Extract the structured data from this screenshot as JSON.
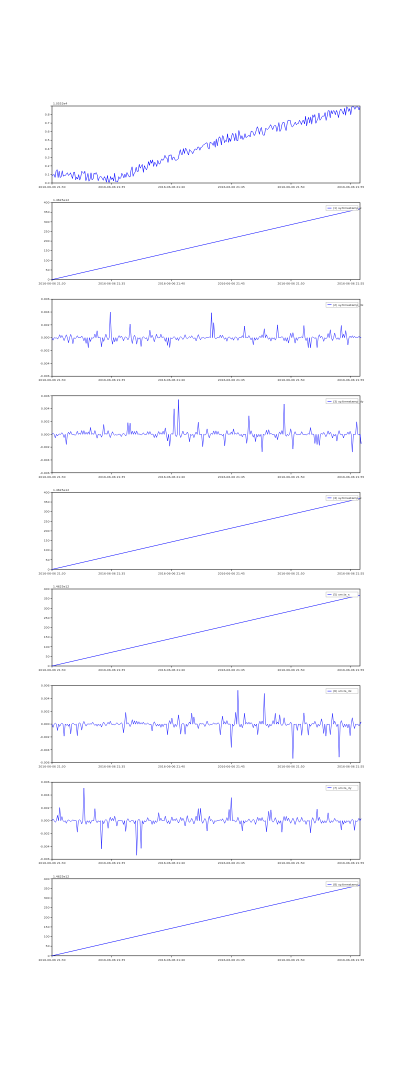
{
  "figure": {
    "line_color": "#0000ff",
    "axes_color": "#000000",
    "grid": false
  },
  "chart_data": [
    {
      "type": "line",
      "name": "price",
      "y_offset": "1.0552e4",
      "x_labels": [
        "2016-06-06 21:30",
        "2016-06-06 21:35",
        "2016-06-06 21:40",
        "2016-06-06 21:45",
        "2016-06-06 21:50",
        "2016-06-06 21:55"
      ],
      "ylim": [
        0,
        0.9
      ],
      "y_ticks": [
        0,
        0.1,
        0.2,
        0.3,
        0.4,
        0.5,
        0.6,
        0.7,
        0.8,
        0.9
      ],
      "y_tick_labels": [
        "0.0",
        "0.1",
        "0.2",
        "0.3",
        "0.4",
        "0.5",
        "0.6",
        "0.7",
        "0.8",
        ""
      ],
      "legend": "",
      "series_pattern": "walk",
      "seed": 11,
      "values": [
        0.12,
        0.05,
        0.32,
        0.55,
        0.7,
        0.88
      ]
    },
    {
      "type": "line",
      "name": "counter_1",
      "y_offset": "1.4625e12",
      "x_labels": [
        "2016-06-06 21:30",
        "2016-06-06 21:35",
        "2016-06-06 21:40",
        "2016-06-06 21:45",
        "2016-06-06 21:50",
        "2016-06-06 21:55"
      ],
      "ylim": [
        0,
        400
      ],
      "y_ticks": [
        0,
        50,
        100,
        150,
        200,
        250,
        300,
        350,
        400
      ],
      "y_tick_labels": [
        "0",
        "50",
        "100",
        "150",
        "200",
        "250",
        "300",
        "350",
        "400"
      ],
      "legend": "(1) sy.timestamp_x",
      "series_pattern": "linear",
      "values": [
        0,
        368
      ]
    },
    {
      "type": "line",
      "name": "spikes_1",
      "y_offset": "",
      "x_labels": [
        "2016-06-06 21:30",
        "2016-06-06 21:35",
        "2016-06-06 21:40",
        "2016-06-06 21:45",
        "2016-06-06 21:50",
        "2016-06-06 21:55"
      ],
      "ylim": [
        -0.006,
        0.006
      ],
      "y_ticks": [
        -0.006,
        -0.004,
        -0.002,
        0,
        0.002,
        0.004,
        0.006
      ],
      "y_tick_labels": [
        "-0.006",
        "-0.004",
        "-0.002",
        "0.000",
        "0.002",
        "0.004",
        "0.006"
      ],
      "legend": "(2) sy.timestamp_dx",
      "series_pattern": "spikes",
      "seed": 21,
      "values": []
    },
    {
      "type": "line",
      "name": "spikes_2",
      "y_offset": "",
      "x_labels": [
        "2016-06-06 21:30",
        "2016-06-06 21:35",
        "2016-06-06 21:40",
        "2016-06-06 21:45",
        "2016-06-06 21:50",
        "2016-06-06 21:55"
      ],
      "ylim": [
        -0.006,
        0.006
      ],
      "y_ticks": [
        -0.006,
        -0.004,
        -0.002,
        0,
        0.002,
        0.004,
        0.006
      ],
      "y_tick_labels": [
        "-0.006",
        "-0.004",
        "-0.002",
        "0.000",
        "0.002",
        "0.004",
        "0.006"
      ],
      "legend": "(3) sy.timestamp_dy",
      "series_pattern": "spikes",
      "seed": 37,
      "values": []
    },
    {
      "type": "line",
      "name": "counter_2",
      "y_offset": "1.4625e12",
      "x_labels": [
        "2016-06-06 21:30",
        "2016-06-06 21:35",
        "2016-06-06 21:40",
        "2016-06-06 21:45",
        "2016-06-06 21:50",
        "2016-06-06 21:55"
      ],
      "ylim": [
        0,
        400
      ],
      "y_ticks": [
        0,
        50,
        100,
        150,
        200,
        250,
        300,
        350,
        400
      ],
      "y_tick_labels": [
        "0",
        "50",
        "100",
        "150",
        "200",
        "250",
        "300",
        "350",
        "400"
      ],
      "legend": "(4) sy.timestamp_x",
      "series_pattern": "linear",
      "values": [
        0,
        368
      ]
    },
    {
      "type": "line",
      "name": "counter_3",
      "y_offset": "1.4625e12",
      "x_labels": [
        "2016-06-06 21:30",
        "2016-06-06 21:35",
        "2016-06-06 21:40",
        "2016-06-06 21:45",
        "2016-06-06 21:50",
        "2016-06-06 21:55"
      ],
      "ylim": [
        0,
        400
      ],
      "y_ticks": [
        0,
        50,
        100,
        150,
        200,
        250,
        300,
        350,
        400
      ],
      "y_tick_labels": [
        "0",
        "50",
        "100",
        "150",
        "200",
        "250",
        "300",
        "350",
        "400"
      ],
      "legend": "(5) sm.ts_x",
      "series_pattern": "linear",
      "values": [
        0,
        368
      ]
    },
    {
      "type": "line",
      "name": "spikes_3",
      "y_offset": "",
      "x_labels": [
        "2016-06-06 21:30",
        "2016-06-06 21:35",
        "2016-06-06 21:40",
        "2016-06-06 21:45",
        "2016-06-06 21:50",
        "2016-06-06 21:55"
      ],
      "ylim": [
        -0.006,
        0.006
      ],
      "y_ticks": [
        -0.006,
        -0.004,
        -0.002,
        0,
        0.002,
        0.004,
        0.006
      ],
      "y_tick_labels": [
        "-0.006",
        "-0.004",
        "-0.002",
        "0.000",
        "0.002",
        "0.004",
        "0.006"
      ],
      "legend": "(6) sm.ts_dx",
      "series_pattern": "spikes",
      "seed": 53,
      "values": []
    },
    {
      "type": "line",
      "name": "spikes_4",
      "y_offset": "",
      "x_labels": [
        "2016-06-06 21:30",
        "2016-06-06 21:35",
        "2016-06-06 21:40",
        "2016-06-06 21:45",
        "2016-06-06 21:50",
        "2016-06-06 21:55"
      ],
      "ylim": [
        -0.006,
        0.006
      ],
      "y_ticks": [
        -0.006,
        -0.004,
        -0.002,
        0,
        0.002,
        0.004,
        0.006
      ],
      "y_tick_labels": [
        "-0.006",
        "-0.004",
        "-0.002",
        "0.000",
        "0.002",
        "0.004",
        "0.006"
      ],
      "legend": "(7) sm.ts_dy",
      "series_pattern": "spikes",
      "seed": 71,
      "values": []
    },
    {
      "type": "line",
      "name": "counter_4",
      "y_offset": "1.4625e12",
      "x_labels": [
        "2016-06-06 21:30",
        "2016-06-06 21:35",
        "2016-06-06 21:40",
        "2016-06-06 21:45",
        "2016-06-06 21:50",
        "2016-06-06 21:55"
      ],
      "ylim": [
        0,
        400
      ],
      "y_ticks": [
        0,
        50,
        100,
        150,
        200,
        250,
        300,
        350,
        400
      ],
      "y_tick_labels": [
        "0",
        "50",
        "100",
        "150",
        "200",
        "250",
        "300",
        "350",
        "400"
      ],
      "legend": "(8) sy.timestamp",
      "series_pattern": "linear",
      "values": [
        0,
        368
      ]
    }
  ]
}
